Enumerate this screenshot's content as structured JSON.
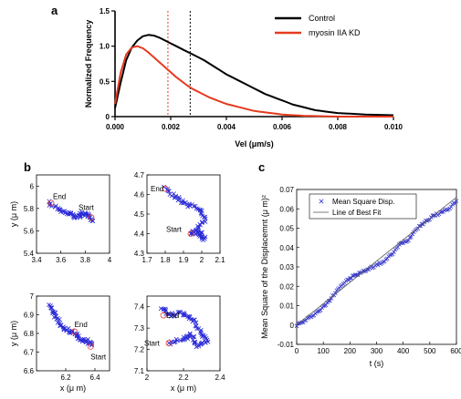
{
  "panel_labels": {
    "a": "a",
    "b": "b",
    "c": "c"
  },
  "chart_data": [
    {
      "id": "a",
      "type": "line",
      "xlabel": "Vel (μm/s)",
      "ylabel": "Normalized Frequency",
      "xlim": [
        0,
        0.01
      ],
      "ylim": [
        0,
        1.5
      ],
      "xticks": [
        "0.000",
        "0.002",
        "0.004",
        "0.006",
        "0.008",
        "0.010"
      ],
      "yticks": [
        "0",
        "0.5",
        "1.0",
        "1.5"
      ],
      "legend_position": "top-right",
      "series": [
        {
          "name": "Control",
          "color": "#000000",
          "x": [
            0,
            0.0002,
            0.0004,
            0.0006,
            0.0008,
            0.001,
            0.0012,
            0.0014,
            0.0016,
            0.0018,
            0.002,
            0.0022,
            0.0024,
            0.0026,
            0.0028,
            0.003,
            0.0032,
            0.0034,
            0.0036,
            0.0038,
            0.004,
            0.0042,
            0.0044,
            0.0046,
            0.0048,
            0.005,
            0.0052,
            0.0054,
            0.0056,
            0.0058,
            0.006,
            0.0062,
            0.0064,
            0.0066,
            0.0068,
            0.007,
            0.0072,
            0.0074,
            0.0076,
            0.0078,
            0.008,
            0.0085,
            0.009,
            0.0095,
            0.01
          ],
          "y": [
            0.12,
            0.48,
            0.8,
            0.98,
            1.08,
            1.14,
            1.16,
            1.15,
            1.12,
            1.08,
            1.04,
            1.0,
            0.96,
            0.92,
            0.88,
            0.84,
            0.8,
            0.75,
            0.7,
            0.65,
            0.6,
            0.56,
            0.52,
            0.48,
            0.44,
            0.4,
            0.36,
            0.32,
            0.29,
            0.26,
            0.23,
            0.2,
            0.17,
            0.15,
            0.13,
            0.11,
            0.09,
            0.08,
            0.07,
            0.06,
            0.05,
            0.04,
            0.03,
            0.025,
            0.02
          ]
        },
        {
          "name": "myosin IIA KD",
          "color": "#e53a1e",
          "x": [
            0,
            0.0002,
            0.0004,
            0.0006,
            0.0008,
            0.001,
            0.0012,
            0.0014,
            0.0016,
            0.0018,
            0.002,
            0.0022,
            0.0024,
            0.0026,
            0.0028,
            0.003,
            0.0032,
            0.0034,
            0.0036,
            0.0038,
            0.004,
            0.0042,
            0.0044,
            0.0046,
            0.0048,
            0.005,
            0.0052,
            0.0054,
            0.0056,
            0.0058,
            0.006,
            0.0062,
            0.0064,
            0.0066,
            0.0068,
            0.007,
            0.0075,
            0.008,
            0.009,
            0.01
          ],
          "y": [
            0.18,
            0.62,
            0.88,
            0.98,
            1.0,
            0.97,
            0.91,
            0.84,
            0.77,
            0.7,
            0.63,
            0.56,
            0.5,
            0.44,
            0.39,
            0.35,
            0.31,
            0.27,
            0.24,
            0.21,
            0.18,
            0.16,
            0.14,
            0.12,
            0.1,
            0.08,
            0.07,
            0.06,
            0.05,
            0.04,
            0.03,
            0.025,
            0.02,
            0.015,
            0.01,
            0.01,
            0.005,
            0.0,
            0.0,
            0.0
          ]
        }
      ],
      "vlines": [
        {
          "x": 0.0019,
          "color": "#e53a1e",
          "style": "dotted"
        },
        {
          "x": 0.0027,
          "color": "#000000",
          "style": "dotted"
        }
      ]
    },
    {
      "id": "b1",
      "type": "scatter",
      "xlabel": "",
      "ylabel": "y (μ m)",
      "xlim": [
        3.4,
        4.0
      ],
      "ylim": [
        5.4,
        6.1
      ],
      "xticks": [
        3.4,
        3.6,
        3.8,
        4
      ],
      "yticks": [
        5.4,
        5.6,
        5.8,
        6
      ],
      "anchors": [
        [
          3.5,
          5.85
        ],
        [
          3.6,
          5.78
        ],
        [
          3.66,
          5.76
        ],
        [
          3.72,
          5.72
        ],
        [
          3.78,
          5.76
        ],
        [
          3.82,
          5.74
        ],
        [
          3.86,
          5.69
        ]
      ],
      "end": {
        "label": "End",
        "x": 3.52,
        "y": 5.85
      },
      "start": {
        "label": "Start",
        "x": 3.85,
        "y": 5.72
      }
    },
    {
      "id": "b2",
      "type": "scatter",
      "xlabel": "",
      "ylabel": "",
      "xlim": [
        1.7,
        2.1
      ],
      "ylim": [
        4.3,
        4.7
      ],
      "xticks": [
        1.7,
        1.8,
        1.9,
        2,
        2.1
      ],
      "yticks": [
        4.3,
        4.4,
        4.5,
        4.6,
        4.7
      ],
      "anchors": [
        [
          1.8,
          4.63
        ],
        [
          1.86,
          4.58
        ],
        [
          1.92,
          4.55
        ],
        [
          1.98,
          4.53
        ],
        [
          2.02,
          4.47
        ],
        [
          1.97,
          4.42
        ],
        [
          2.02,
          4.37
        ],
        [
          1.97,
          4.41
        ],
        [
          1.94,
          4.4
        ]
      ],
      "end": {
        "label": "End",
        "x": 1.8,
        "y": 4.63
      },
      "start": {
        "label": "Start",
        "x": 1.94,
        "y": 4.4
      }
    },
    {
      "id": "b3",
      "type": "scatter",
      "xlabel": "x (μ m)",
      "ylabel": "y (μ m)",
      "xlim": [
        6.0,
        6.5
      ],
      "ylim": [
        6.6,
        7.0
      ],
      "xticks": [
        6.2,
        6.4
      ],
      "yticks": [
        6.6,
        6.7,
        6.8,
        6.9,
        7
      ],
      "anchors": [
        [
          6.08,
          6.95
        ],
        [
          6.12,
          6.9
        ],
        [
          6.16,
          6.85
        ],
        [
          6.2,
          6.82
        ],
        [
          6.26,
          6.8
        ],
        [
          6.3,
          6.77
        ],
        [
          6.35,
          6.76
        ],
        [
          6.38,
          6.74
        ]
      ],
      "end": {
        "label": "End",
        "x": 6.26,
        "y": 6.81
      },
      "start": {
        "label": "Start",
        "x": 6.37,
        "y": 6.73
      }
    },
    {
      "id": "b4",
      "type": "scatter",
      "xlabel": "x (μ m)",
      "ylabel": "",
      "xlim": [
        2.0,
        2.4
      ],
      "ylim": [
        7.1,
        7.45
      ],
      "xticks": [
        2,
        2.2,
        2.4
      ],
      "yticks": [
        7.1,
        7.2,
        7.3,
        7.4
      ],
      "anchors": [
        [
          2.08,
          7.4
        ],
        [
          2.13,
          7.36
        ],
        [
          2.2,
          7.37
        ],
        [
          2.25,
          7.34
        ],
        [
          2.29,
          7.28
        ],
        [
          2.33,
          7.24
        ],
        [
          2.27,
          7.22
        ],
        [
          2.24,
          7.27
        ],
        [
          2.2,
          7.25
        ],
        [
          2.12,
          7.23
        ]
      ],
      "end": {
        "label": "End",
        "x": 2.09,
        "y": 7.36
      },
      "start": {
        "label": "Start",
        "x": 2.12,
        "y": 7.23
      }
    },
    {
      "id": "c",
      "type": "scatter",
      "xlabel": "t (s)",
      "ylabel": "Mean Square of the Displacemnt (μ m)²",
      "xlim": [
        0,
        600
      ],
      "ylim": [
        -0.01,
        0.07
      ],
      "xticks": [
        0,
        100,
        200,
        300,
        400,
        500,
        600
      ],
      "yticks": [
        "-0.01",
        "0",
        "0.01",
        "0.02",
        "0.03",
        "0.04",
        "0.05",
        "0.06",
        "0.07"
      ],
      "legend_position": "top-left",
      "series": [
        {
          "name": "Mean Square Disp.",
          "color": "#3a3acc",
          "x": [
            0,
            30,
            60,
            90,
            120,
            150,
            180,
            210,
            240,
            270,
            300,
            330,
            360,
            390,
            420,
            450,
            480,
            510,
            540,
            570,
            600
          ],
          "y": [
            0.0,
            0.002,
            0.005,
            0.008,
            0.012,
            0.018,
            0.022,
            0.025,
            0.027,
            0.029,
            0.031,
            0.033,
            0.037,
            0.042,
            0.044,
            0.05,
            0.053,
            0.056,
            0.058,
            0.06,
            0.064
          ]
        },
        {
          "name": "Line of Best Fit",
          "color": "#555555",
          "x": [
            0,
            600
          ],
          "y": [
            0.0,
            0.066
          ]
        }
      ]
    }
  ]
}
